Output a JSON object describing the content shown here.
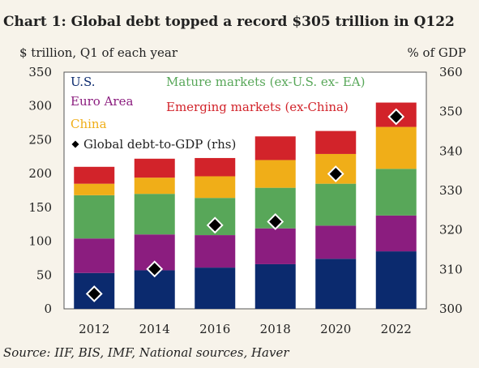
{
  "chart_data": {
    "type": "bar",
    "title": "Chart 1: Global debt topped a record $305 trillion in Q122",
    "ylabel": "$ trillion, Q1 of each year",
    "y2label": "% of GDP",
    "categories": [
      "2012",
      "2014",
      "2016",
      "2018",
      "2020",
      "2022"
    ],
    "ylim": [
      0,
      350
    ],
    "y2lim": [
      300,
      360
    ],
    "yticks": [
      0,
      50,
      100,
      150,
      200,
      250,
      300,
      350
    ],
    "y2ticks": [
      300,
      310,
      320,
      330,
      340,
      350,
      360
    ],
    "stacked": true,
    "series": [
      {
        "name": "U.S.",
        "color": "#0b2a6e",
        "values": [
          53,
          57,
          61,
          66,
          74,
          85
        ]
      },
      {
        "name": "Euro Area",
        "color": "#8b1d7f",
        "values": [
          51,
          53,
          48,
          53,
          49,
          53
        ]
      },
      {
        "name": "Mature markets (ex-U.S. ex- EA)",
        "color": "#58a759",
        "values": [
          64,
          60,
          55,
          60,
          62,
          69
        ]
      },
      {
        "name": "China",
        "color": "#f0ae18",
        "values": [
          17,
          24,
          32,
          41,
          44,
          62
        ]
      },
      {
        "name": "Emerging markets (ex-China)",
        "color": "#d2232a",
        "values": [
          25,
          28,
          27,
          35,
          34,
          36
        ]
      }
    ],
    "line_series": {
      "name": "Global debt-to-GDP (rhs)",
      "axis": "right",
      "marker": "diamond",
      "values": [
        303.8,
        310.1,
        321.2,
        322.1,
        334.2,
        348.7
      ]
    },
    "legend_placement": "top",
    "grid": false
  },
  "source": "Source: IIF, BIS, IMF, National sources, Haver"
}
